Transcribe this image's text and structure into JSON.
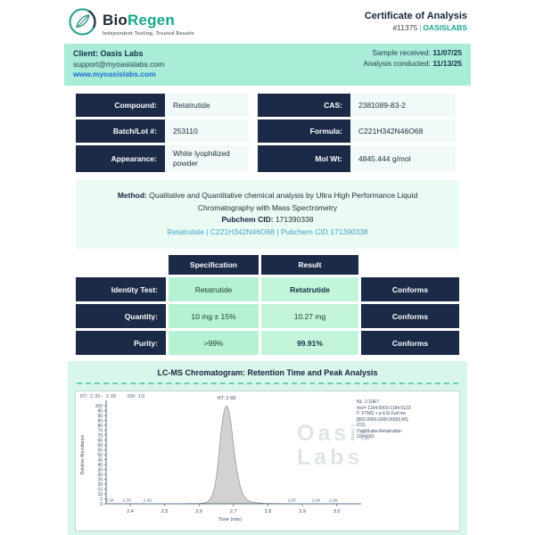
{
  "header": {
    "brand_bio": "Bio",
    "brand_regen": "Regen",
    "tagline": "Independent Testing, Trusted Results",
    "title": "Certificate of Analysis",
    "cert_number": "#11375",
    "cert_separator": "|",
    "cert_client": "OASISLABS"
  },
  "client_bar": {
    "client_label": "Client: Oasis Labs",
    "email": "support@myoasislabs.com",
    "website": "www.myoasislabs.com",
    "sample_received_label": "Sample received:",
    "sample_received": "11/07/25",
    "analysis_conducted_label": "Analysis conducted:",
    "analysis_conducted": "11/13/25"
  },
  "compound_info": {
    "rows": [
      {
        "label_left": "Compound:",
        "value_left": "Retatrutide",
        "label_right": "CAS:",
        "value_right": "2381089-83-2"
      },
      {
        "label_left": "Batch/Lot #:",
        "value_left": "253110",
        "label_right": "Formula:",
        "value_right": "C221H342N46O68"
      },
      {
        "label_left": "Appearance:",
        "value_left": "White lyophilized powder",
        "label_right": "Mol Wt:",
        "value_right": "4845.444 g/mol"
      }
    ]
  },
  "method": {
    "label": "Method:",
    "text": "Qualitative and Quantitative chemical analysis by Ultra High Performance Liquid Chromatography with Mass Spectrometry",
    "pubchem_label": "Pubchem CID:",
    "pubchem_cid": "171390338",
    "link": "Retatrutide | C221H342N46O68 | Pubchem CID 171390338"
  },
  "results_table": {
    "headers": {
      "specification": "Specification",
      "result": "Result"
    },
    "rows": [
      {
        "label": "Identity Test:",
        "specification": "Retatrutide",
        "result": "Retatrutide",
        "status": "Conforms"
      },
      {
        "label": "Quantity:",
        "specification": "10 mg ± 15%",
        "result": "10.27 mg",
        "status": "Conforms"
      },
      {
        "label": "Purity:",
        "specification": ">99%",
        "result": "99.91%",
        "status": "Conforms"
      }
    ]
  },
  "chromatogram_section": {
    "title": "LC-MS Chromatogram: Retention Time and Peak Analysis"
  },
  "chart_data": {
    "type": "area",
    "rt_range_label": "RT: 2.30 - 3.05",
    "sm_label": "SM: 1G",
    "peak_rt": 2.68,
    "peak_rt_label": "RT: 2.68",
    "xlabel": "Time (min)",
    "ylabel": "Relative Abundance",
    "xlim": [
      2.33,
      3.05
    ],
    "ylim": [
      0,
      100
    ],
    "x_ticks": [
      2.4,
      2.5,
      2.6,
      2.7,
      2.8,
      2.9,
      3.0
    ],
    "y_ticks": [
      0,
      5,
      10,
      15,
      20,
      25,
      30,
      35,
      40,
      45,
      50,
      55,
      60,
      65,
      70,
      75,
      80,
      85,
      90,
      95,
      100
    ],
    "minor_peak_labels": [
      2.34,
      2.39,
      2.45,
      2.87,
      2.94,
      2.99
    ],
    "peak_points": [
      [
        2.33,
        0
      ],
      [
        2.55,
        0.2
      ],
      [
        2.6,
        0.4
      ],
      [
        2.615,
        0.8
      ],
      [
        2.625,
        2
      ],
      [
        2.635,
        6
      ],
      [
        2.645,
        16
      ],
      [
        2.652,
        32
      ],
      [
        2.658,
        52
      ],
      [
        2.664,
        74
      ],
      [
        2.67,
        90
      ],
      [
        2.675,
        97
      ],
      [
        2.68,
        100
      ],
      [
        2.686,
        96
      ],
      [
        2.692,
        84
      ],
      [
        2.698,
        66
      ],
      [
        2.705,
        46
      ],
      [
        2.712,
        30
      ],
      [
        2.72,
        17
      ],
      [
        2.728,
        9
      ],
      [
        2.736,
        5
      ],
      [
        2.745,
        2.8
      ],
      [
        2.755,
        1.6
      ],
      [
        2.77,
        0.9
      ],
      [
        2.79,
        0.5
      ],
      [
        2.82,
        0.3
      ],
      [
        2.87,
        0.15
      ],
      [
        3.05,
        0
      ]
    ],
    "annotation_lines": [
      "NL: 2.10E7",
      "m/z= 1194.6003-1194.6123",
      "F: FTMS + p ESI Full ms",
      "[800.0000-2000.0000] MS",
      "ICIS",
      "OasisLabs-Retatrutide-",
      "10mg-01"
    ],
    "watermark_lines": [
      "Oasis",
      "Labs"
    ]
  },
  "colors": {
    "navy": "#1b2a47",
    "teal_brand": "#18a68c",
    "mint_bar": "#a9ecd8",
    "mint_light": "#e9fbf2",
    "mint_section": "#d8f6e9",
    "mint_cell_spec": "#b5f2d3",
    "mint_cell_result": "#c2f5da",
    "link_blue": "#1a6fd4",
    "link_teal_blue": "#45a2cd",
    "peak_fill": "#d2d2d2"
  }
}
